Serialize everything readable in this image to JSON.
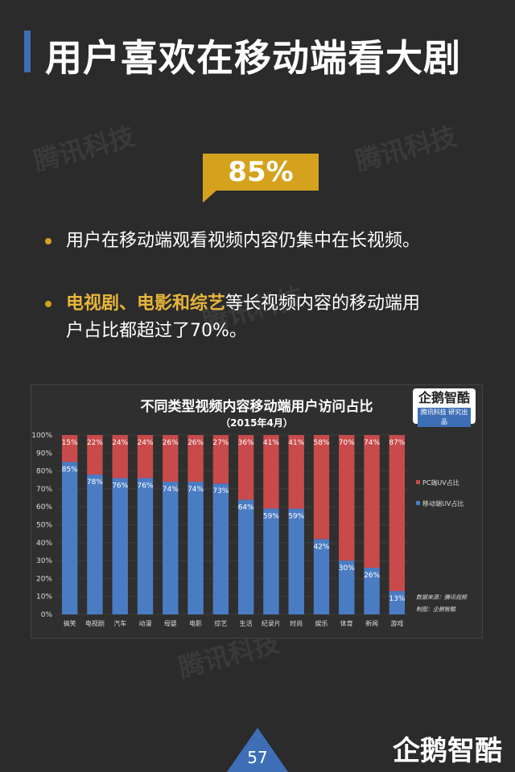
{
  "page": {
    "title": "用户喜欢在移动端看大剧",
    "watermark": "腾讯科技",
    "highlight_percent": "85%",
    "bullets": [
      {
        "text": "用户在移动端观看视频内容仍集中在长视频。"
      },
      {
        "highlight": "电视剧、电影和综艺",
        "text_line1": "等长视频内容的移动端用",
        "text_line2": "户占比都超过了70%。"
      }
    ],
    "page_number": "57",
    "brand": "企鹅智酷"
  },
  "chart_data": {
    "type": "bar",
    "title": "不同类型视频内容移动端用户访问占比",
    "subtitle": "（2015年4月）",
    "logo": {
      "name": "企鹅智酷",
      "tagline": "腾讯科技 研究出品"
    },
    "stacked": true,
    "categories": [
      "搞笑",
      "电视剧",
      "汽车",
      "动漫",
      "母婴",
      "电影",
      "综艺",
      "生活",
      "纪录片",
      "时尚",
      "娱乐",
      "体育",
      "新闻",
      "游戏"
    ],
    "series": [
      {
        "name": "移动端UV占比",
        "color": "#4a7cc4",
        "values": [
          85,
          78,
          76,
          76,
          74,
          74,
          73,
          64,
          59,
          59,
          42,
          30,
          26,
          13
        ],
        "labels": [
          "85%",
          "78%",
          "76%",
          "76%",
          "74%",
          "74%",
          "73%",
          "64%",
          "59%",
          "59%",
          "42%",
          "30%",
          "26%",
          "13%"
        ]
      },
      {
        "name": "PC端UV占比",
        "color": "#c84a4a",
        "values": [
          15,
          22,
          24,
          24,
          26,
          26,
          27,
          36,
          41,
          41,
          58,
          70,
          74,
          87
        ],
        "labels": [
          "15%",
          "22%",
          "24%",
          "24%",
          "26%",
          "26%",
          "27%",
          "36%",
          "41%",
          "41%",
          "58%",
          "70%",
          "74%",
          "87%"
        ]
      }
    ],
    "ylim": [
      0,
      100
    ],
    "yticks": [
      "0%",
      "10%",
      "20%",
      "30%",
      "40%",
      "50%",
      "60%",
      "70%",
      "80%",
      "90%",
      "100%"
    ],
    "legend_position": "right",
    "source": "数据来源：腾讯视频",
    "credit": "制图：企鹅智酷"
  },
  "colors": {
    "background": "#2b2b2b",
    "accent_blue": "#3e6fb6",
    "accent_gold": "#d4a21d",
    "highlight_text": "#e7b53a"
  }
}
